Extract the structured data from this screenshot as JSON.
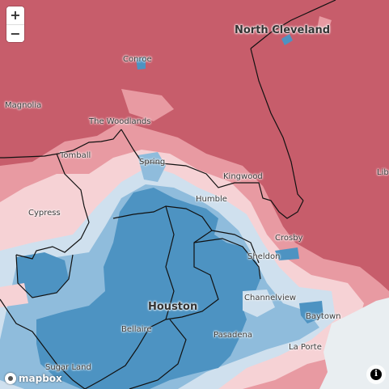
{
  "map": {
    "places": [
      {
        "id": "north-cleveland",
        "label": "North Cleveland",
        "size": "major"
      },
      {
        "id": "conroe",
        "label": "Conroe",
        "size": "minor"
      },
      {
        "id": "magnolia",
        "label": "Magnolia",
        "size": "minor"
      },
      {
        "id": "the-woodlands",
        "label": "The Woodlands",
        "size": "minor"
      },
      {
        "id": "tomball",
        "label": "Tomball",
        "size": "minor"
      },
      {
        "id": "spring",
        "label": "Spring",
        "size": "minor"
      },
      {
        "id": "kingwood",
        "label": "Kingwood",
        "size": "minor"
      },
      {
        "id": "humble",
        "label": "Humble",
        "size": "minor"
      },
      {
        "id": "cypress",
        "label": "Cypress",
        "size": "minor"
      },
      {
        "id": "crosby",
        "label": "Crosby",
        "size": "minor"
      },
      {
        "id": "sheldon",
        "label": "Sheldon",
        "size": "minor"
      },
      {
        "id": "channelview",
        "label": "Channelview",
        "size": "minor"
      },
      {
        "id": "houston",
        "label": "Houston",
        "size": "mid"
      },
      {
        "id": "bellaire",
        "label": "Bellaire",
        "size": "minor"
      },
      {
        "id": "pasadena",
        "label": "Pasadena",
        "size": "minor"
      },
      {
        "id": "baytown",
        "label": "Baytown",
        "size": "minor"
      },
      {
        "id": "sugar-land",
        "label": "Sugar Land",
        "size": "minor"
      },
      {
        "id": "la-porte",
        "label": "La Porte",
        "size": "minor"
      },
      {
        "id": "liberty",
        "label": "Lib",
        "size": "minor"
      }
    ],
    "colors": {
      "strong_rep": "#c75d6b",
      "lean_rep": "#e89aa2",
      "light_rep": "#f6d2d5",
      "light_dem": "#cfe0ee",
      "lean_dem": "#8fbcdc",
      "strong_dem": "#4d93c2",
      "water": "#e9eef1",
      "boundary": "#111111"
    }
  },
  "controls": {
    "zoom_in": "+",
    "zoom_out": "−"
  },
  "attribution": {
    "logo_text": "mapbox",
    "info_symbol": "i"
  }
}
